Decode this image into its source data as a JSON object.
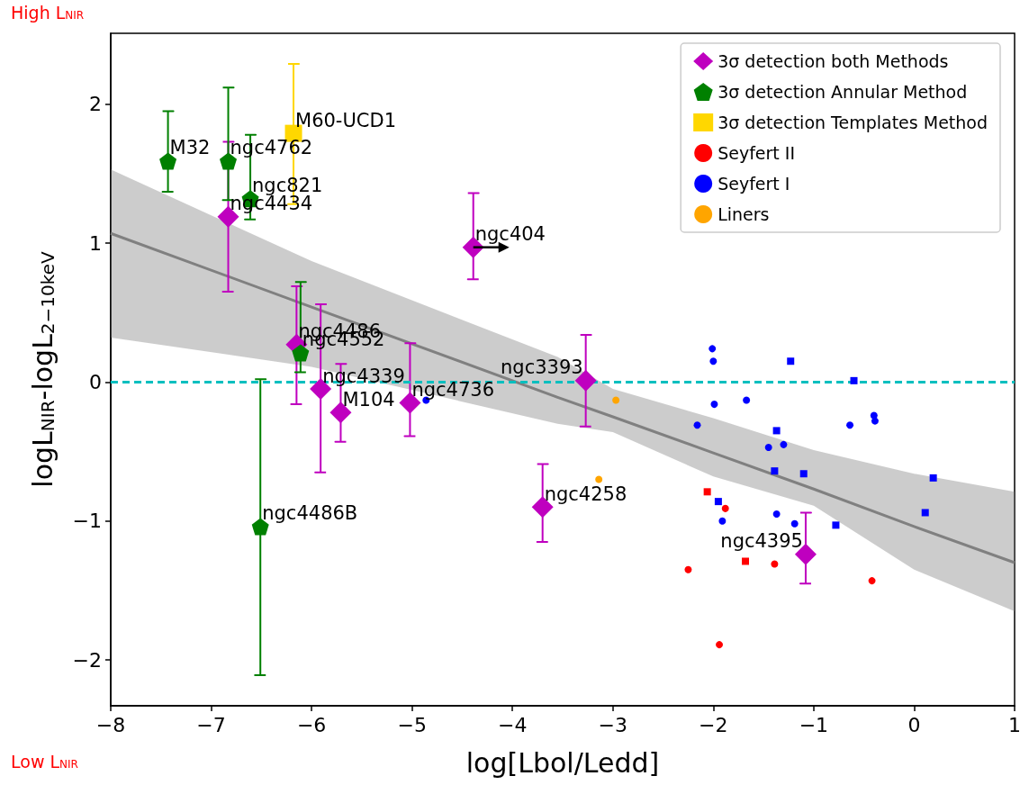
{
  "chart_data": {
    "type": "scatter",
    "xlabel": "log[Lbol/Ledd]",
    "ylabel": "logL$_{NIR}$-logL$_{2−10keV}$",
    "xlim": [
      -8,
      1
    ],
    "xticks": [
      -8,
      -7,
      -6,
      -5,
      -4,
      -3,
      -2,
      -1,
      0,
      1
    ],
    "ylim": [
      -2.33,
      2.51
    ],
    "yticks": [
      -2,
      -1,
      0,
      1,
      2
    ],
    "grid": false,
    "legend": "top right",
    "series": [
      {
        "name": "3σ detection both Methods",
        "color": "#bf00bf",
        "marker": "diamond",
        "x": [
          -6.83,
          -6.15,
          -5.91,
          -5.71,
          -5.02,
          -4.39,
          -3.27,
          -3.7,
          -1.08
        ],
        "values": [
          1.19,
          0.27,
          -0.05,
          -0.22,
          -0.15,
          0.97,
          0.01,
          -0.9,
          -1.24
        ],
        "errors": [
          [
            0.65,
            1.73
          ],
          [
            -0.16,
            0.69
          ],
          [
            -0.65,
            0.56
          ],
          [
            -0.43,
            0.13
          ],
          [
            -0.39,
            0.28
          ],
          [
            0.74,
            1.36
          ],
          [
            -0.32,
            0.34
          ],
          [
            -1.15,
            -0.59
          ],
          [
            -1.45,
            -0.94
          ]
        ]
      },
      {
        "name": "3σ detection Annular Method",
        "color": "#008000",
        "x": [
          -7.43,
          -6.83,
          -6.61,
          -6.11,
          -6.51
        ],
        "values": [
          1.59,
          1.59,
          1.32,
          0.21,
          -1.04
        ],
        "errors": [
          [
            1.37,
            1.95
          ],
          [
            1.31,
            2.12
          ],
          [
            1.17,
            1.78
          ],
          [
            0.07,
            0.72
          ],
          [
            -2.11,
            0.02
          ]
        ]
      },
      {
        "name": "3σ detection Templates Method",
        "color": "#ffd700",
        "marker": "square",
        "x": [
          -6.18
        ],
        "values": [
          1.79
        ],
        "errors": [
          [
            1.28,
            2.29
          ]
        ]
      },
      {
        "name": "Seyfert II",
        "color": "#ff0000",
        "marker": "circle",
        "x": [
          -1.88,
          -2.25,
          -1.39,
          -0.42,
          -1.94
        ],
        "values": [
          -0.91,
          -1.35,
          -1.31,
          -1.43,
          -1.89
        ]
      },
      {
        "name": "Seyfert I",
        "color": "#0000ff",
        "marker": "circle",
        "x": [
          -2.01,
          -2.0,
          -1.99,
          -1.67,
          -2.16,
          -1.45,
          -1.3,
          -0.64,
          -0.4,
          -0.39,
          -1.37,
          -1.91,
          -1.19,
          -4.86
        ],
        "values": [
          0.24,
          0.15,
          -0.16,
          -0.13,
          -0.31,
          -0.47,
          -0.45,
          -0.31,
          -0.24,
          -0.28,
          -0.95,
          -1.0,
          -1.02,
          -0.13
        ]
      },
      {
        "name": "Liners",
        "color": "#ffa500",
        "marker": "circle",
        "x": [
          -2.97,
          -3.14
        ],
        "values": [
          -0.13,
          -0.7
        ]
      },
      {
        "color": "#ff0000",
        "marker": "square",
        "x": [
          -2.06,
          -1.68
        ],
        "values": [
          -0.79,
          -1.29
        ]
      },
      {
        "color": "#0000ff",
        "marker": "square",
        "x": [
          -1.23,
          -0.6,
          -1.37,
          -1.39,
          -1.1,
          0.19,
          -1.95,
          -0.78,
          0.11
        ],
        "values": [
          0.15,
          0.01,
          -0.35,
          -0.64,
          -0.66,
          -0.69,
          -0.86,
          -1.03,
          -0.94
        ]
      },
      {
        "type": "line",
        "color": "#808080",
        "marker": "none",
        "x": [
          -8,
          -6,
          -3.55,
          -3,
          -2,
          -1,
          0,
          1
        ],
        "values": [
          1.07,
          0.54,
          -0.11,
          -0.25,
          -0.51,
          -0.77,
          -1.04,
          -1.3
        ],
        "upper": [
          1.53,
          0.87,
          0.18,
          -0.05,
          -0.26,
          -0.49,
          -0.66,
          -0.79
        ],
        "lower": [
          0.32,
          0.11,
          -0.3,
          -0.36,
          -0.68,
          -0.89,
          -1.35,
          -1.65
        ]
      }
    ],
    "ref_lines": [
      {
        "axis": "y",
        "value": 0,
        "color": "#00bfbf",
        "line_style": "dashed"
      }
    ],
    "annotations": [
      "High L$_{NIR}$",
      "Low L$_{NIR}$",
      {
        "text": "M32",
        "x": -7.43,
        "y": 1.59
      },
      {
        "text": "ngc4762",
        "x": -6.83,
        "y": 1.59
      },
      {
        "text": "M60-UCD1",
        "x": -6.18,
        "y": 1.79
      },
      {
        "text": "ngc821",
        "x": -6.61,
        "y": 1.32
      },
      {
        "text": "ngc4434",
        "x": -6.83,
        "y": 1.19
      },
      {
        "text": "ngc404",
        "x": -4.39,
        "y": 0.97
      },
      {
        "text": "ngc4486",
        "x": -6.15,
        "y": 0.27
      },
      {
        "text": "ngc4552",
        "x": -6.11,
        "y": 0.21
      },
      {
        "text": "ngc4339",
        "x": -5.91,
        "y": -0.05
      },
      {
        "text": "M104",
        "x": -5.71,
        "y": -0.22
      },
      {
        "text": "ngc4736",
        "x": -5.02,
        "y": -0.15
      },
      {
        "text": "ngc3393",
        "x": -3.27,
        "y": 0.01
      },
      {
        "text": "ngc4258",
        "x": -3.7,
        "y": -0.9
      },
      {
        "text": "ngc4486B",
        "x": -6.51,
        "y": -1.04
      },
      {
        "text": "ngc4395",
        "x": -1.08,
        "y": -1.24
      }
    ]
  }
}
